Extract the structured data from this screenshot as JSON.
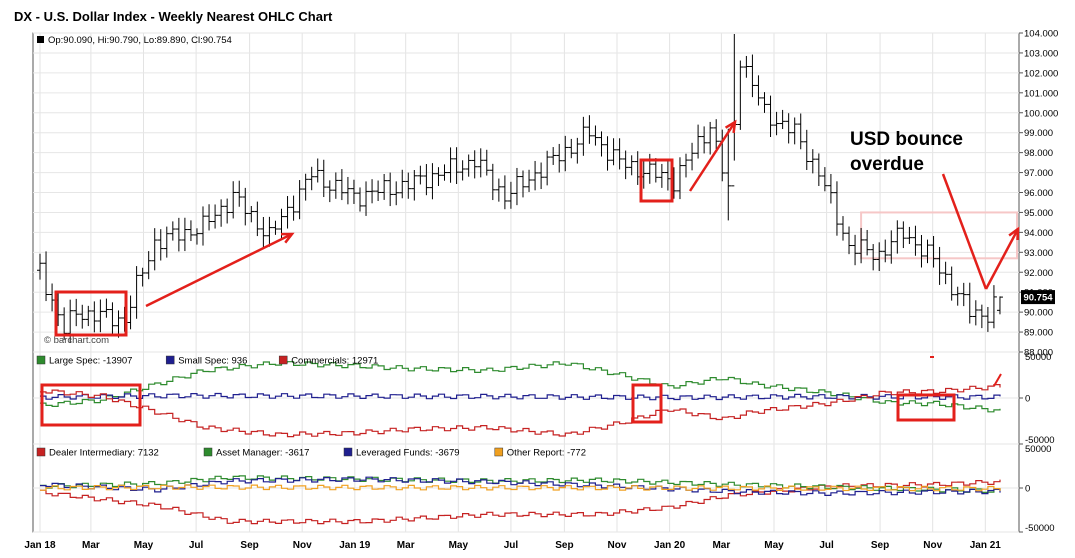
{
  "title": "DX - U.S. Dollar Index - Weekly Nearest OHLC Chart",
  "price_info": "Op:90.090, Hi:90.790, Lo:89.890, Cl:90.754",
  "watermark": "© barchart.com",
  "annotation": "USD bounce\noverdue",
  "last_price_label": "90.754",
  "colors": {
    "price": "#000000",
    "annotation": "#e3201b",
    "band": "#f6c7c7",
    "large_spec": "#2e8b2e",
    "small_spec": "#1f1f8f",
    "commercials": "#c62222",
    "dealer": "#c62222",
    "asset_manager": "#2e8b2e",
    "leveraged_funds": "#1f1f8f",
    "other_report": "#f0a020"
  },
  "x_tick_labels": [
    "Jan 18",
    "Mar",
    "May",
    "Jul",
    "Sep",
    "Nov",
    "Jan 19",
    "Mar",
    "May",
    "Jul",
    "Sep",
    "Nov",
    "Jan 20",
    "Mar",
    "May",
    "Jul",
    "Sep",
    "Nov",
    "Jan 21"
  ],
  "chart_data": [
    {
      "type": "ohlc",
      "title": "DX - U.S. Dollar Index - Weekly Nearest OHLC Chart",
      "ylim": [
        88.0,
        104.0
      ],
      "y_ticks": [
        "88.000",
        "89.000",
        "90.000",
        "91.000",
        "92.000",
        "93.000",
        "94.000",
        "95.000",
        "96.000",
        "97.000",
        "98.000",
        "99.000",
        "100.000",
        "101.000",
        "102.000",
        "103.000",
        "104.000"
      ],
      "last": {
        "open": 90.09,
        "high": 90.79,
        "low": 89.89,
        "close": 90.754
      },
      "anchors": [
        [
          "2018-01-01",
          92.1
        ],
        [
          "2018-01-29",
          89.1
        ],
        [
          "2018-02-12",
          90.0
        ],
        [
          "2018-03-12",
          89.8
        ],
        [
          "2018-04-09",
          89.6
        ],
        [
          "2018-04-23",
          91.3
        ],
        [
          "2018-05-14",
          93.5
        ],
        [
          "2018-06-04",
          93.8
        ],
        [
          "2018-07-09",
          94.3
        ],
        [
          "2018-08-13",
          95.8
        ],
        [
          "2018-09-24",
          93.8
        ],
        [
          "2018-11-12",
          96.9
        ],
        [
          "2018-12-31",
          95.8
        ],
        [
          "2019-03-04",
          96.4
        ],
        [
          "2019-05-20",
          97.6
        ],
        [
          "2019-06-24",
          95.8
        ],
        [
          "2019-09-30",
          99.0
        ],
        [
          "2019-11-04",
          97.5
        ],
        [
          "2020-01-06",
          96.6
        ],
        [
          "2020-02-17",
          99.4
        ],
        [
          "2020-03-09",
          96.0
        ],
        [
          "2020-03-23",
          102.8
        ],
        [
          "2020-04-20",
          100.0
        ],
        [
          "2020-05-25",
          99.0
        ],
        [
          "2020-06-22",
          97.0
        ],
        [
          "2020-07-27",
          93.3
        ],
        [
          "2020-08-31",
          92.9
        ],
        [
          "2020-09-28",
          94.0
        ],
        [
          "2020-11-02",
          92.6
        ],
        [
          "2020-12-14",
          90.0
        ],
        [
          "2021-01-04",
          89.9
        ],
        [
          "2021-01-18",
          90.75
        ]
      ]
    },
    {
      "type": "step-line",
      "ylim": [
        -50000,
        50000
      ],
      "y_ticks": [
        "50000",
        "0",
        "-50000"
      ],
      "legend": [
        {
          "name": "Large Spec: -13907",
          "color": "#2e8b2e"
        },
        {
          "name": "Small Spec: 936",
          "color": "#1f1f8f"
        },
        {
          "name": "Commercials: 12971",
          "color": "#c62222"
        }
      ],
      "series": [
        {
          "name": "Large Spec",
          "anchors": [
            [
              "2018-01-01",
              -8000
            ],
            [
              "2018-03-12",
              -2000
            ],
            [
              "2018-05-14",
              15000
            ],
            [
              "2018-07-09",
              30000
            ],
            [
              "2018-10-01",
              38000
            ],
            [
              "2018-12-31",
              35000
            ],
            [
              "2019-03-04",
              32000
            ],
            [
              "2019-06-03",
              30000
            ],
            [
              "2019-09-02",
              38000
            ],
            [
              "2019-11-04",
              25000
            ],
            [
              "2019-12-30",
              12000
            ],
            [
              "2020-03-02",
              22000
            ],
            [
              "2020-04-06",
              15000
            ],
            [
              "2020-07-06",
              5000
            ],
            [
              "2020-09-07",
              -5000
            ],
            [
              "2020-11-02",
              -6000
            ],
            [
              "2021-01-18",
              -14000
            ]
          ]
        },
        {
          "name": "Small Spec",
          "anchors": [
            [
              "2018-01-01",
              1000
            ],
            [
              "2018-06-04",
              2500
            ],
            [
              "2019-01-07",
              2000
            ],
            [
              "2019-07-01",
              1500
            ],
            [
              "2020-01-06",
              500
            ],
            [
              "2020-06-01",
              1500
            ],
            [
              "2020-12-07",
              1000
            ],
            [
              "2021-01-18",
              936
            ]
          ]
        },
        {
          "name": "Commercials",
          "anchors": [
            [
              "2018-01-01",
              8000
            ],
            [
              "2018-03-12",
              2000
            ],
            [
              "2018-05-14",
              -15000
            ],
            [
              "2018-07-09",
              -32000
            ],
            [
              "2018-10-01",
              -40000
            ],
            [
              "2018-12-31",
              -38000
            ],
            [
              "2019-03-04",
              -34000
            ],
            [
              "2019-06-03",
              -32000
            ],
            [
              "2019-09-02",
              -40000
            ],
            [
              "2019-11-04",
              -27000
            ],
            [
              "2019-12-30",
              -12000
            ],
            [
              "2020-03-02",
              -23000
            ],
            [
              "2020-04-06",
              -15000
            ],
            [
              "2020-07-06",
              -5000
            ],
            [
              "2020-09-07",
              6000
            ],
            [
              "2020-11-02",
              7000
            ],
            [
              "2021-01-18",
              12971
            ]
          ]
        }
      ]
    },
    {
      "type": "step-line",
      "ylim": [
        -50000,
        50000
      ],
      "y_ticks": [
        "50000",
        "0",
        "-50000"
      ],
      "legend": [
        {
          "name": "Dealer Intermediary: 7132",
          "color": "#c62222"
        },
        {
          "name": "Asset Manager: -3617",
          "color": "#2e8b2e"
        },
        {
          "name": "Leveraged Funds: -3679",
          "color": "#1f1f8f"
        },
        {
          "name": "Other Report: -772",
          "color": "#f0a020"
        }
      ],
      "series": [
        {
          "name": "Dealer Intermediary",
          "anchors": [
            [
              "2018-01-01",
              -5000
            ],
            [
              "2018-05-14",
              -20000
            ],
            [
              "2018-08-06",
              -38000
            ],
            [
              "2019-01-07",
              -38000
            ],
            [
              "2019-06-03",
              -30000
            ],
            [
              "2019-10-07",
              -30000
            ],
            [
              "2019-12-30",
              -22000
            ],
            [
              "2020-03-09",
              -8000
            ],
            [
              "2020-07-06",
              2000
            ],
            [
              "2020-11-02",
              4000
            ],
            [
              "2021-01-18",
              7132
            ]
          ]
        },
        {
          "name": "Asset Manager",
          "anchors": [
            [
              "2018-01-01",
              2000
            ],
            [
              "2018-05-14",
              5000
            ],
            [
              "2018-08-06",
              12000
            ],
            [
              "2019-01-07",
              10000
            ],
            [
              "2019-06-03",
              8000
            ],
            [
              "2019-10-07",
              9000
            ],
            [
              "2020-03-09",
              4000
            ],
            [
              "2020-07-06",
              1000
            ],
            [
              "2021-01-18",
              -3617
            ]
          ]
        },
        {
          "name": "Leveraged Funds",
          "anchors": [
            [
              "2018-01-01",
              4000
            ],
            [
              "2018-05-14",
              -2000
            ],
            [
              "2018-08-06",
              8000
            ],
            [
              "2019-01-07",
              10000
            ],
            [
              "2019-06-03",
              7000
            ],
            [
              "2019-10-07",
              3000
            ],
            [
              "2020-03-09",
              -4000
            ],
            [
              "2020-07-06",
              -6000
            ],
            [
              "2021-01-18",
              -3679
            ]
          ]
        },
        {
          "name": "Other Report",
          "anchors": [
            [
              "2018-01-01",
              0
            ],
            [
              "2018-06-04",
              1000
            ],
            [
              "2019-01-07",
              500
            ],
            [
              "2020-01-06",
              0
            ],
            [
              "2021-01-18",
              -772
            ]
          ]
        }
      ]
    }
  ]
}
